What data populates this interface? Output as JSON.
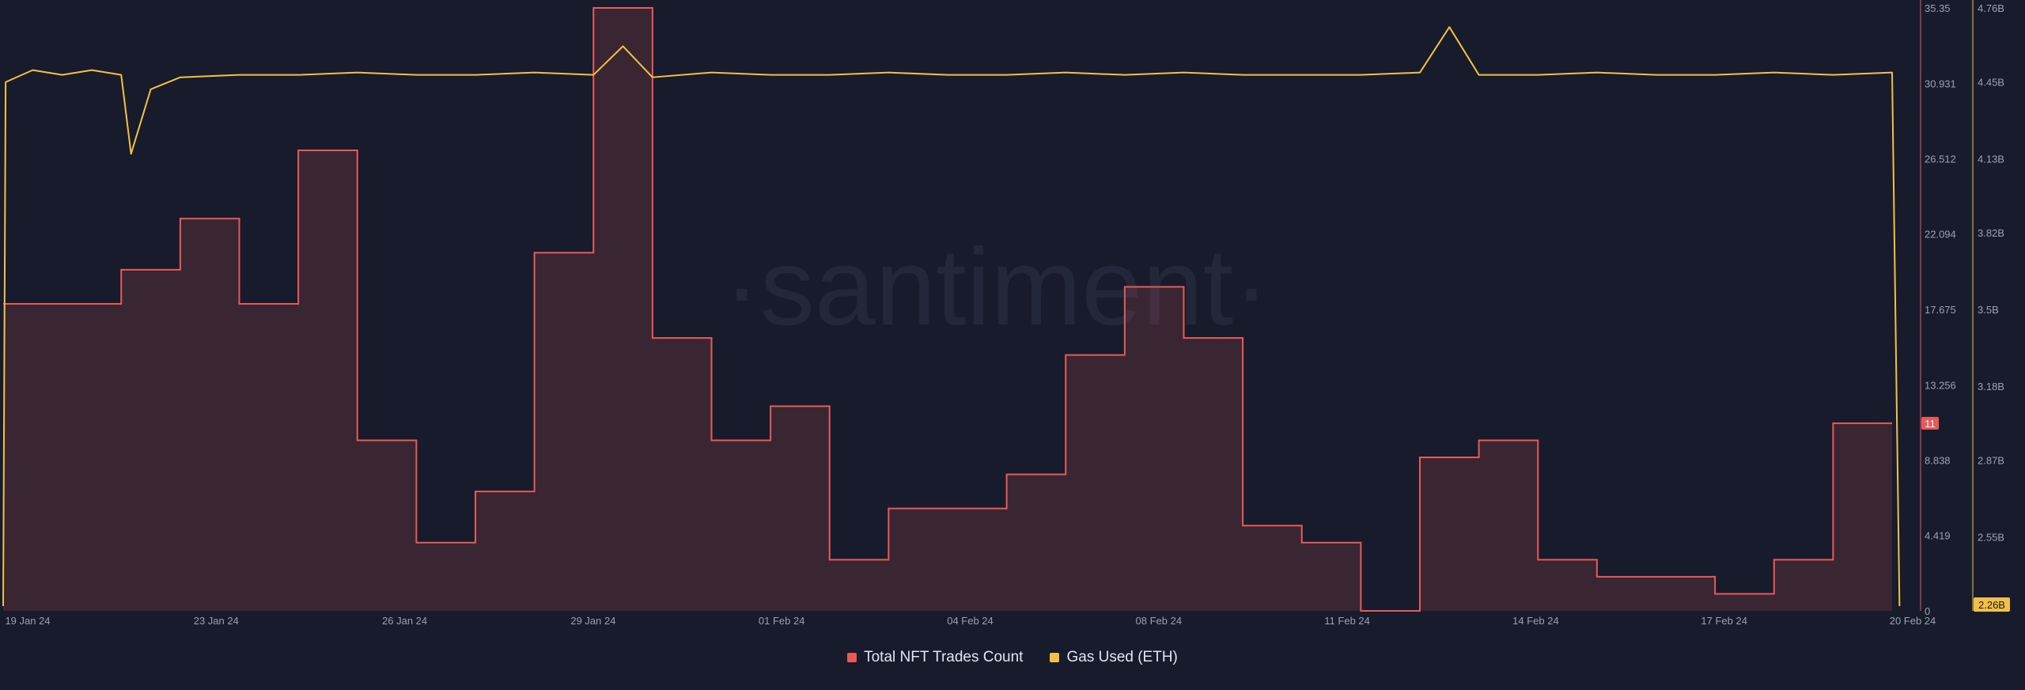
{
  "watermark": "·santiment·",
  "chart_data": {
    "type": "line",
    "x_tick_labels": [
      "19 Jan 24",
      "23 Jan 24",
      "26 Jan 24",
      "29 Jan 24",
      "01 Feb 24",
      "04 Feb 24",
      "08 Feb 24",
      "11 Feb 24",
      "14 Feb 24",
      "17 Feb 24",
      "20 Feb 24"
    ],
    "x_range": [
      "2024-01-19",
      "2024-02-20"
    ],
    "left_axis": {
      "ticks": [
        "0",
        "4.419",
        "8.838",
        "13.256",
        "17.675",
        "22.094",
        "26.512",
        "30.931",
        "35.35"
      ],
      "min": 0,
      "max": 35.35,
      "color": "#e85a5a"
    },
    "right_axis": {
      "ticks": [
        "2.55B",
        "2.87B",
        "3.18B",
        "3.5B",
        "3.82B",
        "4.13B",
        "4.45B",
        "4.76B"
      ],
      "min": 2.24,
      "max": 4.76,
      "color": "#f2c144"
    },
    "series": [
      {
        "name": "Total NFT Trades Count",
        "color": "#e85a5a",
        "axis": "left",
        "style": "step-area",
        "last_value_label": "11",
        "points": [
          [
            "2024-01-19",
            18
          ],
          [
            "2024-01-20",
            18
          ],
          [
            "2024-01-21",
            20
          ],
          [
            "2024-01-22",
            23
          ],
          [
            "2024-01-23",
            18
          ],
          [
            "2024-01-24",
            27
          ],
          [
            "2024-01-25",
            10
          ],
          [
            "2024-01-26",
            4
          ],
          [
            "2024-01-27",
            7
          ],
          [
            "2024-01-28",
            21
          ],
          [
            "2024-01-29",
            35.35
          ],
          [
            "2024-01-30",
            16
          ],
          [
            "2024-01-31",
            10
          ],
          [
            "2024-02-01",
            12
          ],
          [
            "2024-02-02",
            3
          ],
          [
            "2024-02-03",
            6
          ],
          [
            "2024-02-04",
            6
          ],
          [
            "2024-02-05",
            8
          ],
          [
            "2024-02-06",
            15
          ],
          [
            "2024-02-07",
            19
          ],
          [
            "2024-02-08",
            16
          ],
          [
            "2024-02-09",
            5
          ],
          [
            "2024-02-10",
            4
          ],
          [
            "2024-02-11",
            0
          ],
          [
            "2024-02-12",
            9
          ],
          [
            "2024-02-13",
            10
          ],
          [
            "2024-02-14",
            3
          ],
          [
            "2024-02-15",
            2
          ],
          [
            "2024-02-16",
            2
          ],
          [
            "2024-02-17",
            1
          ],
          [
            "2024-02-18",
            3
          ],
          [
            "2024-02-19",
            11
          ],
          [
            "2024-02-20",
            11
          ]
        ]
      },
      {
        "name": "Gas Used (ETH)",
        "color": "#f2c144",
        "axis": "right",
        "style": "line",
        "last_value_label": "2.26B",
        "points": [
          [
            "2024-01-19T00:00",
            2.26
          ],
          [
            "2024-01-19T01:00",
            4.45
          ],
          [
            "2024-01-19T12:00",
            4.5
          ],
          [
            "2024-01-20T00:00",
            4.48
          ],
          [
            "2024-01-20T12:00",
            4.5
          ],
          [
            "2024-01-21T00:00",
            4.48
          ],
          [
            "2024-01-21T04:00",
            4.15
          ],
          [
            "2024-01-21T12:00",
            4.42
          ],
          [
            "2024-01-22T00:00",
            4.47
          ],
          [
            "2024-01-23T00:00",
            4.48
          ],
          [
            "2024-01-24T00:00",
            4.48
          ],
          [
            "2024-01-25T00:00",
            4.49
          ],
          [
            "2024-01-26T00:00",
            4.48
          ],
          [
            "2024-01-27T00:00",
            4.48
          ],
          [
            "2024-01-28T00:00",
            4.49
          ],
          [
            "2024-01-29T00:00",
            4.48
          ],
          [
            "2024-01-29T12:00",
            4.6
          ],
          [
            "2024-01-30T00:00",
            4.47
          ],
          [
            "2024-01-31T00:00",
            4.49
          ],
          [
            "2024-02-01T00:00",
            4.48
          ],
          [
            "2024-02-02T00:00",
            4.48
          ],
          [
            "2024-02-03T00:00",
            4.49
          ],
          [
            "2024-02-04T00:00",
            4.48
          ],
          [
            "2024-02-05T00:00",
            4.48
          ],
          [
            "2024-02-06T00:00",
            4.49
          ],
          [
            "2024-02-07T00:00",
            4.48
          ],
          [
            "2024-02-08T00:00",
            4.49
          ],
          [
            "2024-02-09T00:00",
            4.48
          ],
          [
            "2024-02-10T00:00",
            4.48
          ],
          [
            "2024-02-11T00:00",
            4.48
          ],
          [
            "2024-02-12T00:00",
            4.49
          ],
          [
            "2024-02-12T12:00",
            4.68
          ],
          [
            "2024-02-13T00:00",
            4.48
          ],
          [
            "2024-02-14T00:00",
            4.48
          ],
          [
            "2024-02-15T00:00",
            4.49
          ],
          [
            "2024-02-16T00:00",
            4.48
          ],
          [
            "2024-02-17T00:00",
            4.48
          ],
          [
            "2024-02-18T00:00",
            4.49
          ],
          [
            "2024-02-19T00:00",
            4.48
          ],
          [
            "2024-02-20T00:00",
            4.49
          ],
          [
            "2024-02-20T03:00",
            2.26
          ]
        ]
      }
    ],
    "grid": false,
    "legend_position": "bottom-center"
  },
  "legend": {
    "items": [
      {
        "label": "Total NFT Trades Count",
        "color": "#e85a5a"
      },
      {
        "label": "Gas Used (ETH)",
        "color": "#f2c144"
      }
    ]
  }
}
